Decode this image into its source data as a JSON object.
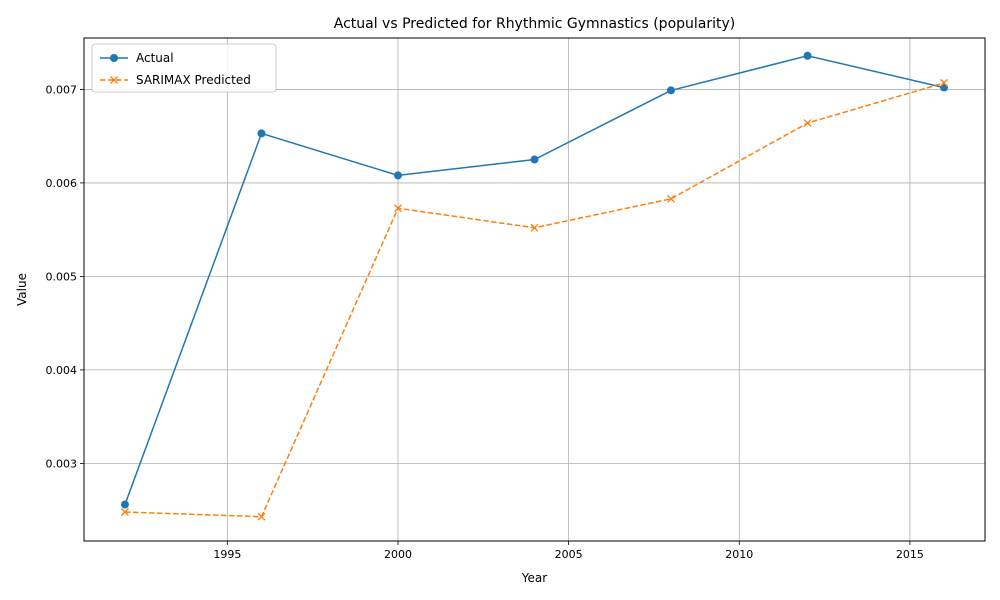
{
  "chart_data": {
    "type": "line",
    "title": "Actual vs Predicted for Rhythmic Gymnastics (popularity)",
    "xlabel": "Year",
    "ylabel": "Value",
    "xlim": [
      1990.8,
      2017.2
    ],
    "ylim": [
      0.00217,
      0.00755
    ],
    "xticks": [
      1995,
      2000,
      2005,
      2010,
      2015
    ],
    "yticks": [
      0.003,
      0.004,
      0.005,
      0.006,
      0.007
    ],
    "ytick_labels": [
      "0.003",
      "0.004",
      "0.005",
      "0.006",
      "0.007"
    ],
    "grid": true,
    "legend_position": "top-left",
    "x": [
      1992,
      1996,
      2000,
      2004,
      2008,
      2012,
      2016
    ],
    "series": [
      {
        "name": "Actual",
        "values": [
          0.00256,
          0.00653,
          0.00608,
          0.00625,
          0.00699,
          0.00736,
          0.00702
        ],
        "color": "#1f77b4",
        "style": "solid",
        "marker": "circle"
      },
      {
        "name": "SARIMAX Predicted",
        "values": [
          0.00248,
          0.00243,
          0.00573,
          0.00552,
          0.00583,
          0.00664,
          0.00707
        ],
        "color": "#ff7f0e",
        "style": "dashed",
        "marker": "x"
      }
    ]
  }
}
